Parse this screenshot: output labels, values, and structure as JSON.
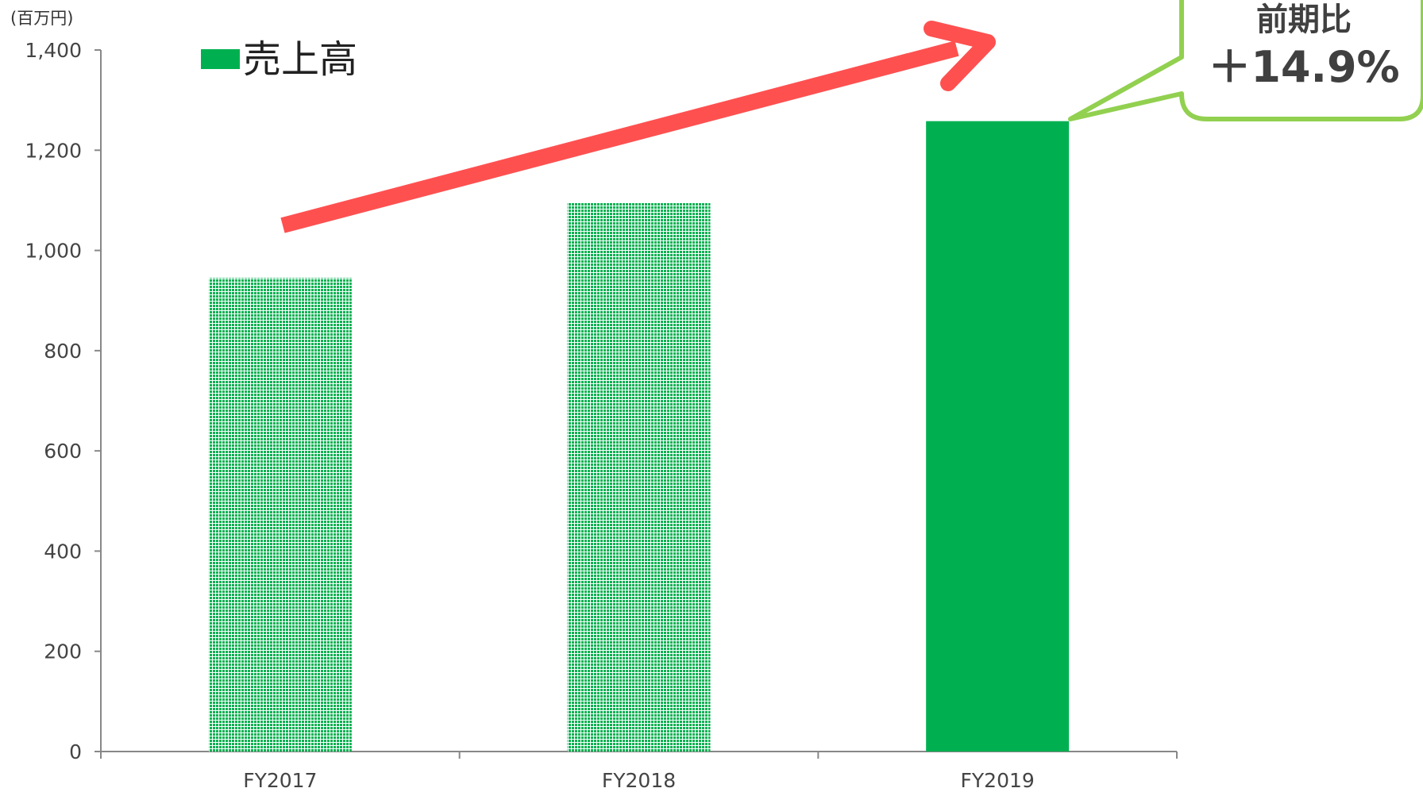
{
  "chart_data": {
    "type": "bar",
    "unit_label": "(百万円)",
    "categories": [
      "FY2017",
      "FY2018",
      "FY2019"
    ],
    "series": [
      {
        "name": "売上高",
        "values": [
          945,
          1095,
          1258
        ]
      }
    ],
    "ylim": [
      0,
      1400
    ],
    "yticks": [
      0,
      200,
      400,
      600,
      800,
      1000,
      1200,
      1400
    ],
    "ytick_labels": [
      "0",
      "200",
      "400",
      "600",
      "800",
      "1,000",
      "1,200",
      "1,400"
    ],
    "grid": false,
    "legend": "top-left",
    "bar_styles": [
      "dotted",
      "dotted",
      "solid"
    ],
    "colors": {
      "bar": "#00B050",
      "arrow": "#FF5050",
      "callout_border": "#92D050",
      "axis": "#888888"
    },
    "annotation": {
      "title": "前期比",
      "value": "＋14.9%"
    }
  }
}
